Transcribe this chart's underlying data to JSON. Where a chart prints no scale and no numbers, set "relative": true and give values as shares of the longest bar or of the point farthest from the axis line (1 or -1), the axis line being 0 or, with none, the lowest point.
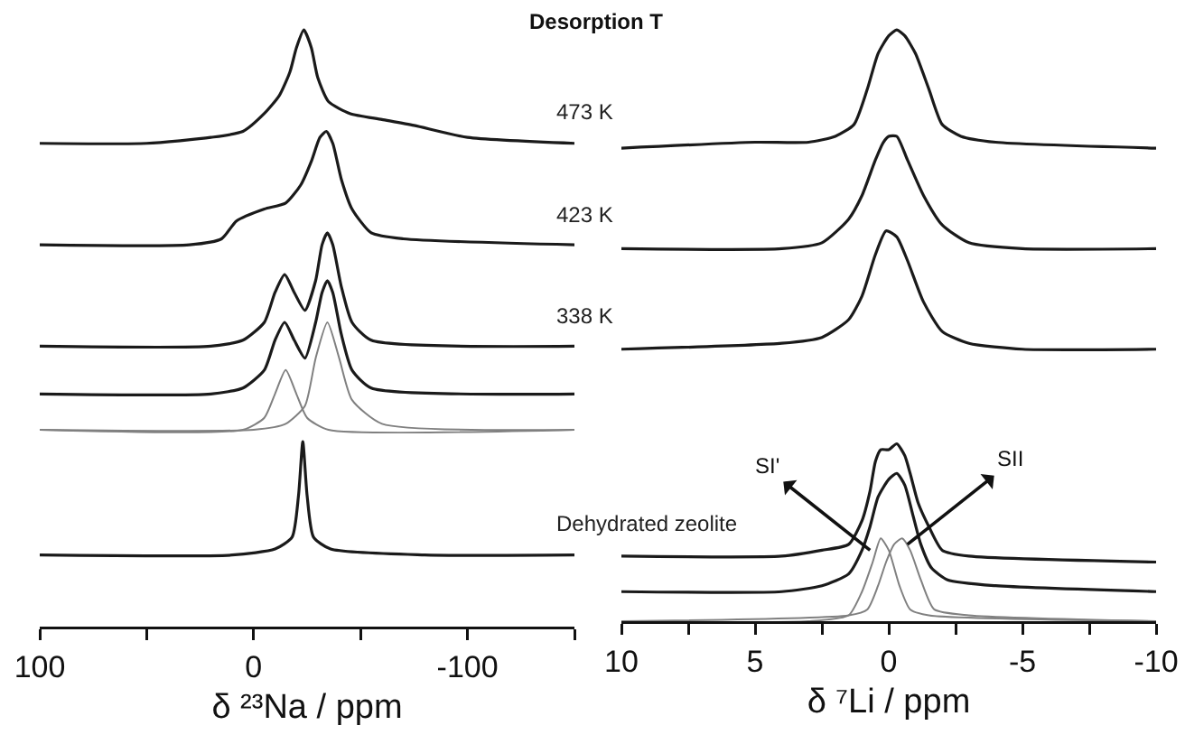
{
  "chart_data": [
    {
      "type": "line",
      "relative": true,
      "xlabel": "δ ²³Na / ppm",
      "xlim": [
        100,
        -150
      ],
      "xticks": [
        100,
        {
          "value": 50,
          "label": null
        },
        0,
        {
          "value": -50,
          "label": null
        },
        -100,
        {
          "value": -150,
          "label": null
        }
      ],
      "legend": false,
      "grid": false,
      "marker": "none",
      "line_style": "solid",
      "annotations": [
        "Desorption T"
      ],
      "series": [
        {
          "name": "473 K",
          "color": "#1a1a1a",
          "x": [
            100,
            50,
            20,
            5,
            -5,
            -12,
            -17,
            -20,
            -23.5,
            -27,
            -30,
            -35,
            -45,
            -60,
            -75,
            -100,
            -150
          ],
          "values": [
            0.81,
            0.81,
            0.82,
            0.83,
            0.86,
            0.89,
            0.93,
            0.97,
            1.0,
            0.97,
            0.92,
            0.88,
            0.86,
            0.85,
            0.84,
            0.82,
            0.81
          ]
        },
        {
          "name": "423 K",
          "color": "#1a1a1a",
          "x": [
            100,
            30,
            15,
            8,
            -5,
            -15,
            -22,
            -27,
            -31,
            -34,
            -37,
            -41,
            -46,
            -55,
            -70,
            -150
          ],
          "values": [
            0.64,
            0.64,
            0.65,
            0.68,
            0.7,
            0.71,
            0.74,
            0.78,
            0.82,
            0.83,
            0.81,
            0.75,
            0.7,
            0.66,
            0.65,
            0.64
          ]
        },
        {
          "name": "338 K",
          "color": "#1a1a1a",
          "x": [
            100,
            20,
            5,
            -5,
            -10,
            -14.5,
            -19,
            -24,
            -29,
            -32,
            -34.5,
            -37,
            -41,
            -46,
            -55,
            -150
          ],
          "values": [
            0.47,
            0.47,
            0.48,
            0.51,
            0.56,
            0.59,
            0.56,
            0.53,
            0.58,
            0.64,
            0.66,
            0.64,
            0.57,
            0.51,
            0.48,
            0.47
          ]
        },
        {
          "color": "#1a1a1a",
          "x": [
            100,
            20,
            5,
            -5,
            -10,
            -14.5,
            -19,
            -24,
            -29,
            -32,
            -34.5,
            -37,
            -41,
            -46,
            -55,
            -150
          ],
          "values": [
            0.39,
            0.39,
            0.4,
            0.43,
            0.48,
            0.51,
            0.48,
            0.45,
            0.51,
            0.56,
            0.58,
            0.56,
            0.49,
            0.43,
            0.4,
            0.39
          ]
        },
        {
          "color": "#808080",
          "x": [
            100,
            5,
            -5,
            -10,
            -15,
            -20,
            -25,
            -35,
            -150
          ],
          "values": [
            0.33,
            0.33,
            0.35,
            0.39,
            0.43,
            0.39,
            0.35,
            0.33,
            0.33
          ]
        },
        {
          "color": "#808080",
          "x": [
            100,
            0,
            -15,
            -24,
            -29,
            -34.5,
            -40,
            -46,
            -60,
            -150
          ],
          "values": [
            0.33,
            0.33,
            0.34,
            0.37,
            0.45,
            0.51,
            0.45,
            0.38,
            0.34,
            0.33
          ]
        },
        {
          "name": "Dehydrated zeolite",
          "color": "#1a1a1a",
          "x": [
            100,
            10,
            -10,
            -18,
            -21,
            -23,
            -25,
            -28,
            -36,
            -80,
            -150
          ],
          "values": [
            0.12,
            0.12,
            0.13,
            0.15,
            0.22,
            0.31,
            0.22,
            0.15,
            0.13,
            0.12,
            0.12
          ]
        }
      ]
    },
    {
      "type": "line",
      "relative": true,
      "xlabel": "δ ⁷Li / ppm",
      "xlim": [
        10,
        -10
      ],
      "xticks": [
        10,
        {
          "value": 7.5,
          "label": null
        },
        5,
        {
          "value": 2.5,
          "label": null
        },
        0,
        {
          "value": -2.5,
          "label": null
        },
        -5,
        {
          "value": -7.5,
          "label": null
        },
        -10
      ],
      "legend": false,
      "grid": false,
      "marker": "none",
      "line_style": "solid",
      "annotations": [
        {
          "text": "SI'",
          "x": 0.7,
          "y": 0.12
        },
        {
          "text": "SII",
          "x": -0.7,
          "y": 0.13
        }
      ],
      "series": [
        {
          "color": "#1a1a1a",
          "x": [
            10,
            5,
            3,
            2,
            1.3,
            0.8,
            0.4,
            0,
            -0.3,
            -0.6,
            -1,
            -1.5,
            -2,
            -2.7,
            -4,
            -10
          ],
          "values": [
            0.8,
            0.81,
            0.81,
            0.82,
            0.84,
            0.9,
            0.96,
            0.99,
            1.0,
            0.99,
            0.96,
            0.9,
            0.84,
            0.82,
            0.81,
            0.8
          ]
        },
        {
          "color": "#1a1a1a",
          "x": [
            10,
            4,
            2.5,
            1.5,
            1,
            0.5,
            0.2,
            0,
            -0.3,
            -0.7,
            -1.3,
            -2,
            -3,
            -5,
            -10
          ],
          "values": [
            0.63,
            0.63,
            0.64,
            0.68,
            0.72,
            0.78,
            0.81,
            0.82,
            0.82,
            0.78,
            0.72,
            0.67,
            0.64,
            0.63,
            0.63
          ]
        },
        {
          "color": "#1a1a1a",
          "x": [
            10,
            4,
            2.5,
            1.5,
            1,
            0.5,
            0.1,
            -0.3,
            -0.7,
            -1.3,
            -2,
            -3,
            -5,
            -10
          ],
          "values": [
            0.46,
            0.47,
            0.48,
            0.51,
            0.55,
            0.62,
            0.66,
            0.65,
            0.61,
            0.54,
            0.49,
            0.47,
            0.46,
            0.46
          ]
        },
        {
          "color": "#1a1a1a",
          "x": [
            10,
            4,
            2.5,
            1.5,
            1,
            0.7,
            0.5,
            0.3,
            0,
            -0.3,
            -0.6,
            -0.8,
            -1.1,
            -1.5,
            -2,
            -3,
            -10
          ],
          "values": [
            0.11,
            0.11,
            0.12,
            0.13,
            0.17,
            0.22,
            0.27,
            0.29,
            0.29,
            0.3,
            0.28,
            0.25,
            0.2,
            0.16,
            0.12,
            0.11,
            0.1
          ]
        },
        {
          "color": "#1a1a1a",
          "x": [
            10,
            4,
            2.5,
            1.5,
            1,
            0.7,
            0.4,
            0,
            -0.3,
            -0.6,
            -0.9,
            -1.2,
            -1.6,
            -2.2,
            -4,
            -10
          ],
          "values": [
            0.05,
            0.05,
            0.06,
            0.08,
            0.12,
            0.16,
            0.21,
            0.24,
            0.25,
            0.23,
            0.18,
            0.13,
            0.09,
            0.07,
            0.06,
            0.05
          ]
        },
        {
          "color": "#808080",
          "x": [
            10,
            3,
            1.5,
            1,
            0.6,
            0.3,
            0,
            -0.4,
            -0.8,
            -1.5,
            -10
          ],
          "values": [
            0.0,
            0.0,
            0.01,
            0.05,
            0.1,
            0.14,
            0.12,
            0.06,
            0.02,
            0.01,
            0.0
          ]
        },
        {
          "color": "#808080",
          "x": [
            10,
            1.5,
            0.8,
            0.4,
            0.1,
            -0.2,
            -0.5,
            -0.8,
            -1.2,
            -1.7,
            -3,
            -10
          ],
          "values": [
            0.0,
            0.01,
            0.02,
            0.06,
            0.1,
            0.13,
            0.14,
            0.12,
            0.07,
            0.02,
            0.01,
            0.0
          ]
        }
      ]
    }
  ]
}
